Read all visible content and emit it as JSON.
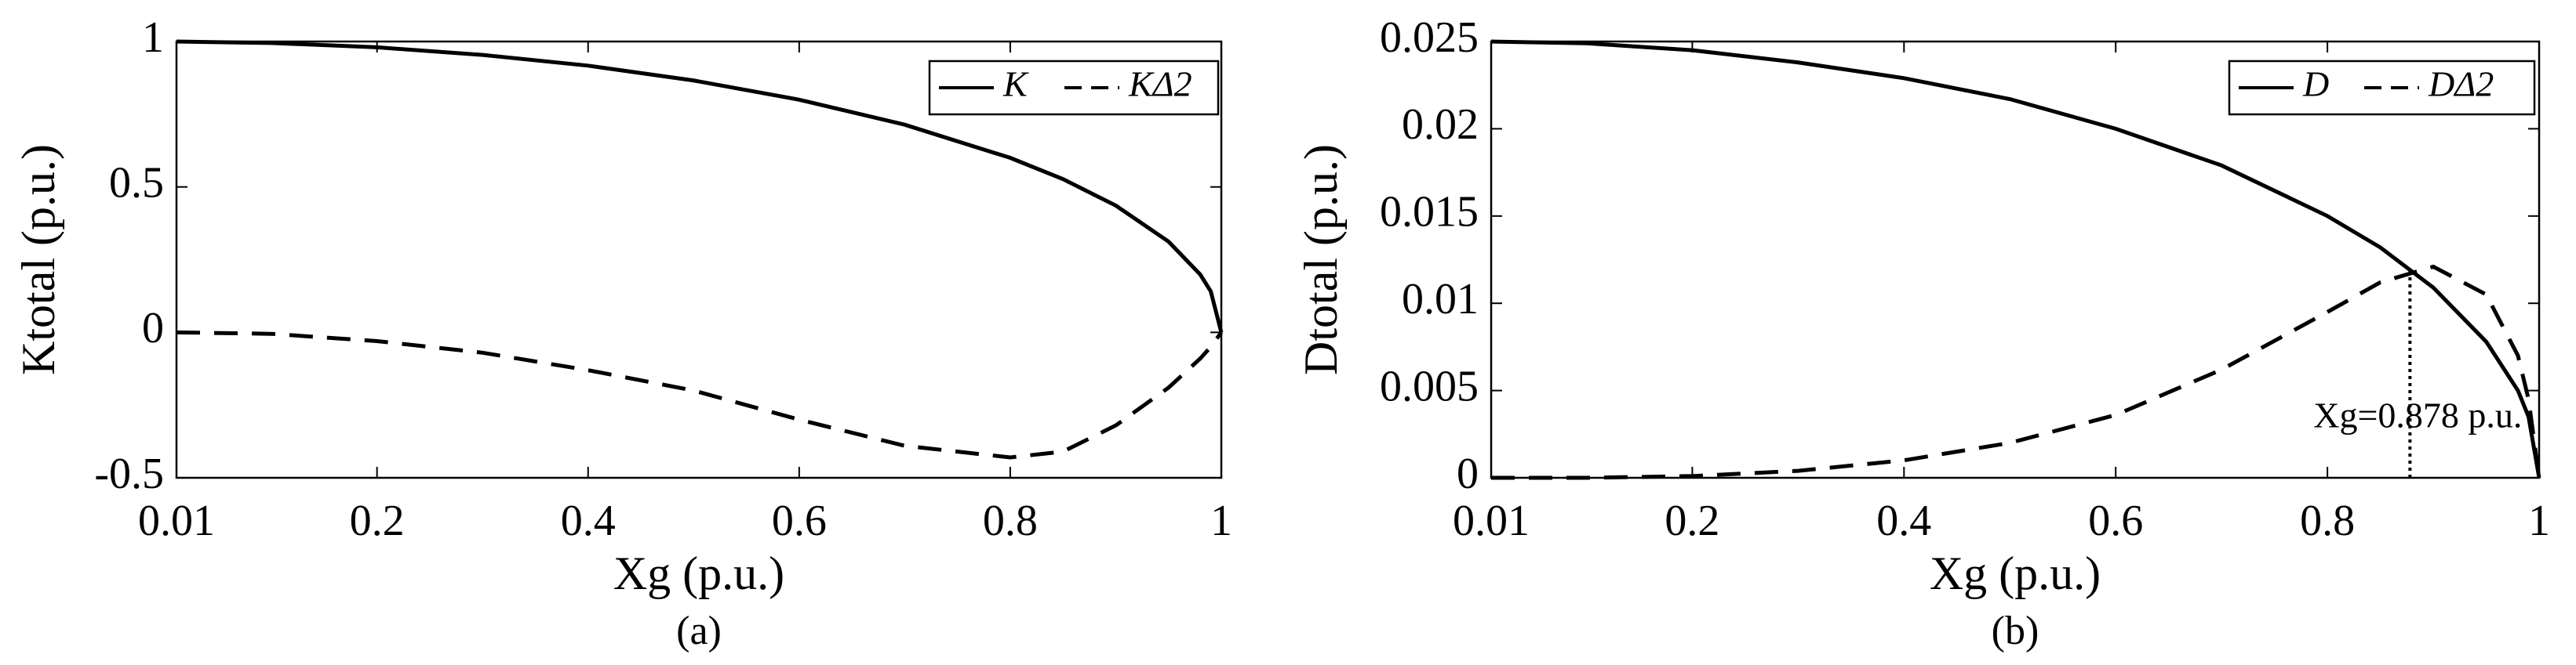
{
  "chart_data": [
    {
      "type": "line",
      "x_label": "Xg (p.u.)",
      "y_label": "Ktotal (p.u.)",
      "caption": "(a)",
      "x": [
        0.01,
        0.1,
        0.2,
        0.3,
        0.4,
        0.5,
        0.6,
        0.7,
        0.8,
        0.85,
        0.9,
        0.95,
        0.98,
        0.99,
        1
      ],
      "xlim": [
        0.01,
        1
      ],
      "xticks": [
        0.01,
        0.2,
        0.4,
        0.6,
        0.8,
        1
      ],
      "ylim": [
        -0.5,
        1
      ],
      "yticks": [
        -0.5,
        0,
        0.5,
        1
      ],
      "legend": "upper right",
      "series": [
        {
          "name": "K",
          "color": "#000000",
          "dash": "solid",
          "values": [
            1,
            0.995,
            0.98,
            0.954,
            0.917,
            0.866,
            0.8,
            0.714,
            0.6,
            0.527,
            0.436,
            0.312,
            0.199,
            0.141,
            0
          ]
        },
        {
          "name": "KΔ2",
          "color": "#000000",
          "dash": "dashed",
          "values": [
            0,
            -0.005,
            -0.03,
            -0.07,
            -0.13,
            -0.2,
            -0.3,
            -0.39,
            -0.43,
            -0.41,
            -0.32,
            -0.19,
            -0.09,
            -0.05,
            0
          ]
        }
      ]
    },
    {
      "type": "line",
      "x_label": "Xg (p.u.)",
      "y_label": "Dtotal (p.u.)",
      "caption": "(b)",
      "x": [
        0.01,
        0.1,
        0.2,
        0.3,
        0.4,
        0.5,
        0.6,
        0.7,
        0.8,
        0.85,
        0.9,
        0.95,
        0.98,
        0.99,
        1
      ],
      "xlim": [
        0.01,
        1
      ],
      "xticks": [
        0.01,
        0.2,
        0.4,
        0.6,
        0.8,
        1
      ],
      "ylim": [
        0,
        0.025
      ],
      "yticks": [
        0,
        0.005,
        0.01,
        0.015,
        0.02,
        0.025
      ],
      "legend": "upper right",
      "series": [
        {
          "name": "D",
          "color": "#000000",
          "dash": "solid",
          "values": [
            0.025,
            0.0249,
            0.0245,
            0.0238,
            0.0229,
            0.0217,
            0.02,
            0.0179,
            0.015,
            0.0132,
            0.0109,
            0.0078,
            0.005,
            0.0035,
            0
          ]
        },
        {
          "name": "DΔ2",
          "color": "#000000",
          "dash": "dashed",
          "values": [
            0,
            0,
            0.0001,
            0.0004,
            0.001,
            0.002,
            0.0036,
            0.0062,
            0.0095,
            0.0112,
            0.0121,
            0.0105,
            0.007,
            0.0045,
            0
          ]
        }
      ],
      "annotation": {
        "text": "Xg=0.878 p.u.",
        "x": 0.878,
        "y": 0.012
      }
    }
  ]
}
